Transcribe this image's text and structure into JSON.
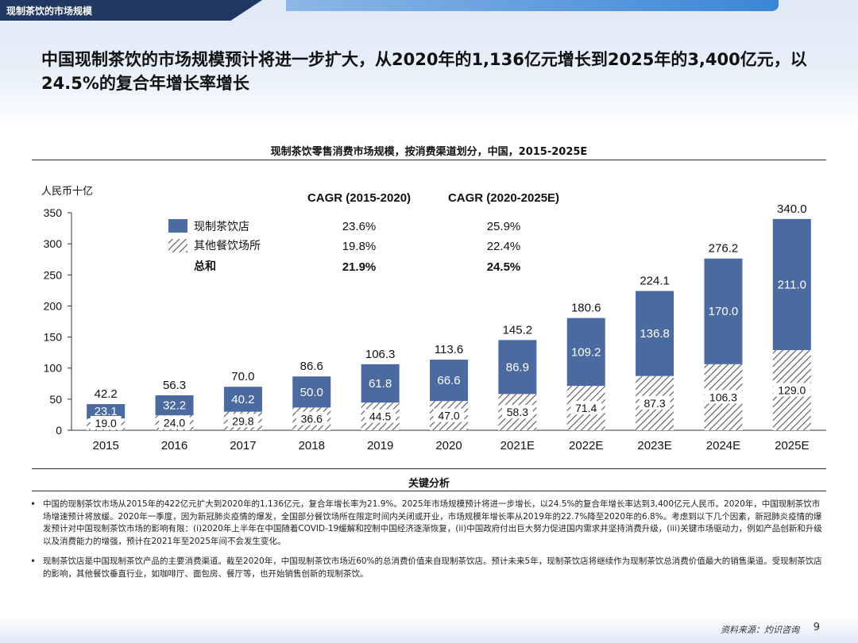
{
  "section_tab": "现制茶饮的市场规模",
  "headline": "中国现制茶饮的市场规模预计将进一步扩大，从2020年的1,136亿元增长到2025年的3,400亿元，以24.5%的复合年增长率增长",
  "colors": {
    "store": "#4a6aa0",
    "other_hatch": "#555555",
    "navy": "#1f3864"
  },
  "chart_data": {
    "type": "bar",
    "stacked": true,
    "title": "现制茶饮零售消费市场规模，按消费渠道划分，中国，2015-2025E",
    "ylabel": "人民币十亿",
    "ylim": [
      0,
      350
    ],
    "yticks": [
      0,
      50,
      100,
      150,
      200,
      250,
      300,
      350
    ],
    "categories": [
      "2015",
      "2016",
      "2017",
      "2018",
      "2019",
      "2020",
      "2021E",
      "2022E",
      "2023E",
      "2024E",
      "2025E"
    ],
    "series": [
      {
        "name": "其他餐饮场所",
        "values": [
          19.0,
          24.0,
          29.8,
          36.6,
          44.5,
          47.0,
          58.3,
          71.4,
          87.3,
          106.3,
          129.0
        ]
      },
      {
        "name": "现制茶饮店",
        "values": [
          23.1,
          32.2,
          40.2,
          50.0,
          61.8,
          66.6,
          86.9,
          109.2,
          136.8,
          170.0,
          211.0
        ]
      }
    ],
    "totals": [
      42.2,
      56.3,
      70.0,
      86.6,
      106.3,
      113.6,
      145.2,
      180.6,
      224.1,
      276.2,
      340.0
    ],
    "value_labels": {
      "other": [
        "19.0",
        "24.0",
        "29.8",
        "36.6",
        "44.5",
        "47.0",
        "58.3",
        "71.4",
        "87.3",
        "106.3",
        "129.0"
      ],
      "store": [
        "23.1",
        "32.2",
        "40.2",
        "50.0",
        "61.8",
        "66.6",
        "86.9",
        "109.2",
        "136.8",
        "170.0",
        "211.0"
      ],
      "totals": [
        "42.2",
        "56.3",
        "70.0",
        "86.6",
        "106.3",
        "113.6",
        "145.2",
        "180.6",
        "224.1",
        "276.2",
        "340.0"
      ]
    },
    "legend": {
      "store_label": "现制茶饮店",
      "other_label": "其他餐饮场所",
      "total_label": "总和"
    },
    "cagr_table": {
      "header_1": "CAGR (2015-2020)",
      "header_2": "CAGR (2020-2025E)",
      "rows": [
        {
          "c1": "23.6%",
          "c2": "25.9%"
        },
        {
          "c1": "19.8%",
          "c2": "22.4%"
        },
        {
          "c1": "21.9%",
          "c2": "24.5%"
        }
      ]
    }
  },
  "analysis": {
    "title": "关键分析",
    "bullets": [
      "中国的现制茶饮市场从2015年的422亿元扩大到2020年的1,136亿元，复合年增长率为21.9%。2025年市场规模预计将进一步增长，以24.5%的复合年增长率达到3,400亿元人民币。2020年，中国现制茶饮市场增速预计将放缓。2020年一季度，因为新冠肺炎疫情的爆发，全国部分餐饮场所在限定时间内关闭或开业，市场规模年增长率从2019年的22.7%降至2020年的6.8%。考虑到以下几个因素，新冠肺炎疫情的爆发预计对中国现制茶饮市场的影响有限：(i)2020年上半年在中国随着COVID-19缓解和控制中国经济逐渐恢复，(ii)中国政府付出巨大努力促进国内需求并坚持消费升级，(iii)关键市场驱动力，例如产品创新和升级以及消费能力的增强，预计在2021年至2025年间不会发生变化。",
      "现制茶饮店是中国现制茶饮产品的主要消费渠道。截至2020年，中国现制茶饮市场近60%的总消费价值来自现制茶饮店。预计未来5年，现制茶饮店将继续作为现制茶饮总消费价值最大的销售渠道。受现制茶饮店的影响，其他餐饮垂直行业，如咖啡厅、面包房、餐厅等，也开始销售创新的现制茶饮。"
    ]
  },
  "footer": {
    "source": "资料来源：灼识咨询",
    "page_number": "9"
  }
}
